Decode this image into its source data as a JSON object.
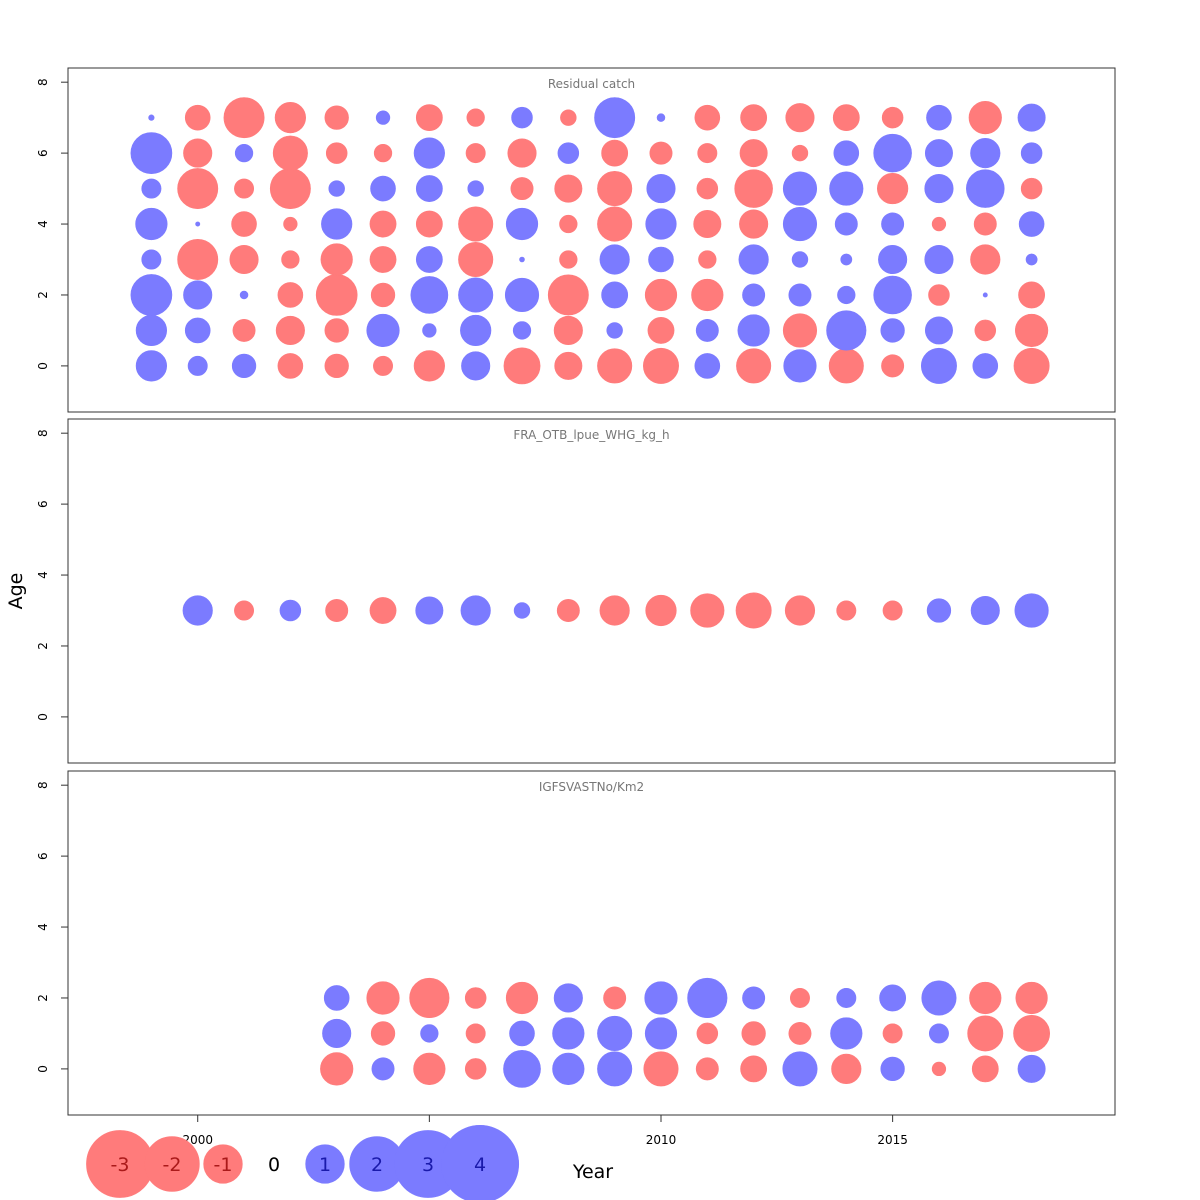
{
  "chart_data": {
    "type": "scatter",
    "subtype": "bubble",
    "xlabel": "Year",
    "ylabel": "Age",
    "xlim": [
      1997.2,
      2019.8
    ],
    "ylim": [
      -1.3,
      8.4
    ],
    "x_ticks": [
      "2000",
      "2005",
      "2010",
      "2015"
    ],
    "y_ticks": [
      "0",
      "2",
      "4",
      "6",
      "8"
    ],
    "colors": {
      "positive": "#7b7bff",
      "negative": "#ff7b7b",
      "frame": "#333333"
    },
    "years": [
      1999,
      2000,
      2001,
      2002,
      2003,
      2004,
      2005,
      2006,
      2007,
      2008,
      2009,
      2010,
      2011,
      2012,
      2013,
      2014,
      2015,
      2016,
      2017,
      2018
    ],
    "panels": [
      {
        "title": "Residual catch",
        "ages": [
          0,
          1,
          2,
          3,
          4,
          5,
          6,
          7
        ],
        "residuals": [
          [
            1.5,
            1.5,
            2.7,
            0.6,
            1.6,
            0.6,
            2.7,
            0.05
          ],
          [
            0.6,
            1.0,
            1.3,
            -2.6,
            0.03,
            -2.6,
            -1.3,
            -1.0
          ],
          [
            0.9,
            -0.8,
            0.1,
            -1.3,
            -1.0,
            -0.6,
            0.5,
            -2.6
          ],
          [
            -1.0,
            -1.3,
            -1.0,
            -0.5,
            -0.3,
            -2.6,
            -1.9,
            -1.5
          ],
          [
            -0.9,
            -0.9,
            -2.7,
            -1.6,
            1.5,
            0.4,
            -0.7,
            -0.9
          ],
          [
            -0.6,
            1.7,
            -0.9,
            -1.1,
            -1.1,
            1.0,
            -0.5,
            0.3
          ],
          [
            -1.5,
            0.3,
            2.2,
            1.1,
            -1.1,
            1.1,
            1.5,
            -1.1
          ],
          [
            1.3,
            1.5,
            1.9,
            -1.9,
            -1.9,
            0.4,
            -0.6,
            -0.5
          ],
          [
            -2.1,
            0.5,
            1.8,
            0.04,
            1.6,
            -0.8,
            -1.3,
            0.7
          ],
          [
            -1.2,
            -1.3,
            -2.6,
            -0.5,
            -0.5,
            -1.2,
            0.7,
            -0.4
          ],
          [
            -1.9,
            0.4,
            1.1,
            1.4,
            -1.9,
            -1.9,
            -1.1,
            2.6
          ],
          [
            -2.0,
            -1.1,
            -1.6,
            1.0,
            1.5,
            1.3,
            -0.8,
            0.1
          ],
          [
            1.0,
            0.8,
            -1.6,
            -0.5,
            -1.2,
            -0.7,
            -0.6,
            -1.0
          ],
          [
            -1.9,
            1.6,
            0.8,
            1.4,
            -1.3,
            -2.3,
            -1.2,
            -1.1
          ],
          [
            1.7,
            -1.8,
            0.8,
            0.4,
            1.8,
            1.8,
            -0.4,
            -1.3
          ],
          [
            -1.9,
            2.5,
            0.5,
            0.2,
            0.8,
            1.8,
            1.0,
            -1.1
          ],
          [
            -0.8,
            0.9,
            2.3,
            1.3,
            0.8,
            -1.5,
            2.3,
            -0.7
          ],
          [
            2.0,
            1.2,
            -0.7,
            1.3,
            -0.3,
            1.3,
            1.2,
            1.0
          ],
          [
            1.0,
            -0.7,
            0.03,
            -1.4,
            -0.8,
            2.3,
            1.4,
            -1.7
          ],
          [
            -2.0,
            -1.7,
            -1.1,
            0.2,
            1.0,
            -0.7,
            0.7,
            1.2
          ]
        ]
      },
      {
        "title": "FRA_OTB_lpue_WHG_kg_h",
        "ages": [
          3
        ],
        "residuals": [
          [
            null
          ],
          [
            1.4
          ],
          [
            -0.6
          ],
          [
            0.7
          ],
          [
            -0.8
          ],
          [
            -1.1
          ],
          [
            1.2
          ],
          [
            1.4
          ],
          [
            0.4
          ],
          [
            -0.8
          ],
          [
            -1.4
          ],
          [
            -1.5
          ],
          [
            -1.8
          ],
          [
            -2.0
          ],
          [
            -1.4
          ],
          [
            -0.6
          ],
          [
            -0.6
          ],
          [
            0.9
          ],
          [
            1.3
          ],
          [
            1.8
          ]
        ]
      },
      {
        "title": "IGFSVASTNo/Km2",
        "ages": [
          0,
          1,
          2
        ],
        "residuals": [
          [
            null,
            null,
            null
          ],
          [
            null,
            null,
            null
          ],
          [
            null,
            null,
            null
          ],
          [
            null,
            null,
            null
          ],
          [
            -1.7,
            1.3,
            1.0
          ],
          [
            0.8,
            -0.9,
            -1.7
          ],
          [
            -1.6,
            0.5,
            -2.5
          ],
          [
            -0.7,
            -0.6,
            -0.7
          ],
          [
            2.2,
            1.0,
            -1.6
          ],
          [
            1.6,
            1.6,
            1.3
          ],
          [
            1.9,
            1.9,
            -0.8
          ],
          [
            -1.9,
            1.6,
            1.7
          ],
          [
            -0.8,
            -0.7,
            2.5
          ],
          [
            -1.1,
            -0.9,
            0.8
          ],
          [
            1.9,
            -0.8,
            -0.6
          ],
          [
            -1.4,
            1.6,
            0.6
          ],
          [
            0.9,
            -0.6,
            1.1
          ],
          [
            -0.3,
            0.6,
            1.9
          ],
          [
            -1.1,
            -2.0,
            -1.6
          ],
          [
            1.2,
            -2.1,
            -1.6
          ]
        ]
      }
    ],
    "legend": {
      "values": [
        -3,
        -2,
        -1,
        0,
        1,
        2,
        3,
        4
      ],
      "labels": [
        "-3",
        "-2",
        "-1",
        "0",
        "1",
        "2",
        "3",
        "4"
      ]
    }
  }
}
